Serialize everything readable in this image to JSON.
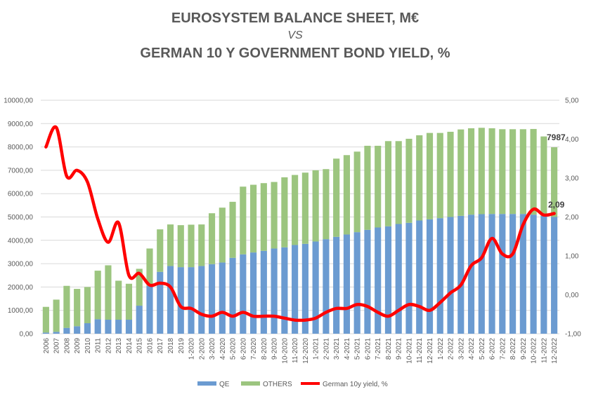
{
  "chart_data": {
    "type": "bar",
    "title": "EUROSYSTEM BALANCE SHEET, M€",
    "title_vs": "VS",
    "subtitle": "GERMAN 10 Y GOVERNMENT BOND YIELD, %",
    "stacked": true,
    "categories": [
      "2006",
      "2007",
      "2008",
      "2009",
      "2010",
      "2011",
      "2012",
      "2013",
      "2014",
      "2015",
      "2016",
      "2017",
      "2018",
      "2019",
      "1-2020",
      "2-2020",
      "3-2020",
      "4-2020",
      "5-2020",
      "6-2020",
      "7-2020",
      "8-2020",
      "9-2020",
      "10-2020",
      "11-2020",
      "12-2020",
      "1-2021",
      "2-2021",
      "3-2021",
      "4-2021",
      "5-2021",
      "6-2021",
      "7-2021",
      "8-2021",
      "9-2021",
      "10-2021",
      "11-2021",
      "12-2021",
      "1-2022",
      "2-2022",
      "3-2022",
      "4-2022",
      "5-2022",
      "6-2022",
      "7-2022",
      "8-2022",
      "9-2022",
      "10-2022",
      "11-2022",
      "12-2022"
    ],
    "series": [
      {
        "name": "QE",
        "axis": "left",
        "color": "#6b9bd1",
        "values": [
          50,
          80,
          250,
          320,
          450,
          620,
          600,
          600,
          600,
          1200,
          2050,
          2650,
          2900,
          2850,
          2850,
          2900,
          2980,
          3050,
          3250,
          3400,
          3480,
          3550,
          3650,
          3700,
          3800,
          3850,
          3950,
          4050,
          4150,
          4250,
          4350,
          4450,
          4550,
          4600,
          4700,
          4750,
          4850,
          4900,
          4950,
          5000,
          5050,
          5100,
          5120,
          5130,
          5130,
          5130,
          5130,
          5100,
          5050,
          5000
        ]
      },
      {
        "name": "OTHERS",
        "axis": "left",
        "color": "#9cc57f",
        "values": [
          1100,
          1380,
          1800,
          1600,
          1550,
          2080,
          2330,
          1670,
          1540,
          1580,
          1600,
          1820,
          1780,
          1800,
          1820,
          1780,
          2180,
          2350,
          2400,
          2900,
          2900,
          2900,
          2850,
          3000,
          3000,
          3050,
          3050,
          3000,
          3350,
          3400,
          3450,
          3600,
          3500,
          3650,
          3550,
          3600,
          3650,
          3700,
          3650,
          3650,
          3700,
          3700,
          3700,
          3670,
          3630,
          3630,
          3630,
          3670,
          3400,
          2987
        ]
      },
      {
        "name": "German 10y yield, %",
        "axis": "right",
        "type": "line",
        "color": "#ff0000",
        "values": [
          3.8,
          4.3,
          3.05,
          3.2,
          2.9,
          1.95,
          1.35,
          1.85,
          0.5,
          0.55,
          0.25,
          0.3,
          0.2,
          -0.3,
          -0.35,
          -0.5,
          -0.55,
          -0.45,
          -0.55,
          -0.45,
          -0.55,
          -0.55,
          -0.55,
          -0.6,
          -0.65,
          -0.65,
          -0.6,
          -0.45,
          -0.35,
          -0.35,
          -0.25,
          -0.3,
          -0.45,
          -0.55,
          -0.4,
          -0.25,
          -0.3,
          -0.4,
          -0.2,
          0.05,
          0.25,
          0.75,
          0.95,
          1.45,
          1.05,
          1.05,
          1.8,
          2.2,
          2.05,
          2.09
        ]
      }
    ],
    "y_left": {
      "min": 0,
      "max": 10000,
      "ticks": [
        "0,00",
        "1000,00",
        "2000,00",
        "3000,00",
        "4000,00",
        "5000,00",
        "6000,00",
        "7000,00",
        "8000,00",
        "9000,00",
        "10000,00"
      ]
    },
    "y_right": {
      "min": -1,
      "max": 5,
      "ticks": [
        "-1,00",
        "0,00",
        "1,00",
        "2,00",
        "3,00",
        "4,00",
        "5,00"
      ]
    },
    "annotations": {
      "last_bar_total": "7987",
      "last_yield": "2,09"
    },
    "legend": {
      "position": "bottom",
      "items": [
        "QE",
        "OTHERS",
        "German 10y yield, %"
      ]
    },
    "grid": true
  }
}
